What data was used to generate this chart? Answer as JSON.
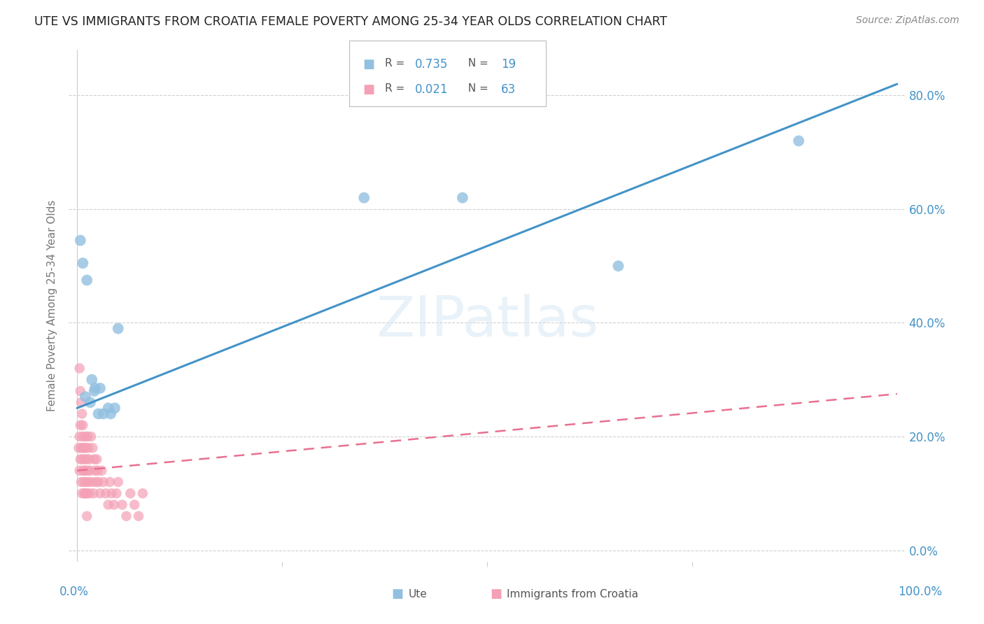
{
  "title": "UTE VS IMMIGRANTS FROM CROATIA FEMALE POVERTY AMONG 25-34 YEAR OLDS CORRELATION CHART",
  "source": "Source: ZipAtlas.com",
  "ylabel": "Female Poverty Among 25-34 Year Olds",
  "xlim": [
    0,
    1
  ],
  "ylim": [
    0,
    0.88
  ],
  "yticks": [
    0.0,
    0.2,
    0.4,
    0.6,
    0.8
  ],
  "ytick_labels": [
    "0.0%",
    "20.0%",
    "40.0%",
    "60.0%",
    "80.0%"
  ],
  "legend_ute_R": "0.735",
  "legend_ute_N": "19",
  "legend_croatia_R": "0.021",
  "legend_croatia_N": "63",
  "blue_color": "#92c0e0",
  "blue_line_color": "#4393c8",
  "pink_color": "#f4a0b5",
  "pink_line_color": "#e87090",
  "ute_line_x0": 0.0,
  "ute_line_y0": 0.25,
  "ute_line_x1": 1.0,
  "ute_line_y1": 0.82,
  "croatia_line_x0": 0.0,
  "croatia_line_y0": 0.14,
  "croatia_line_x1": 1.0,
  "croatia_line_y1": 0.275,
  "ute_x": [
    0.004,
    0.007,
    0.012,
    0.018,
    0.022,
    0.028,
    0.038,
    0.046,
    0.35,
    0.47,
    0.66,
    0.88,
    0.01,
    0.016,
    0.021,
    0.026,
    0.032,
    0.041,
    0.05
  ],
  "ute_y": [
    0.545,
    0.505,
    0.475,
    0.3,
    0.285,
    0.285,
    0.25,
    0.25,
    0.62,
    0.62,
    0.5,
    0.72,
    0.27,
    0.26,
    0.28,
    0.24,
    0.24,
    0.24,
    0.39
  ],
  "croatia_x": [
    0.002,
    0.003,
    0.003,
    0.004,
    0.004,
    0.005,
    0.005,
    0.006,
    0.006,
    0.007,
    0.007,
    0.008,
    0.008,
    0.009,
    0.009,
    0.01,
    0.01,
    0.011,
    0.011,
    0.012,
    0.012,
    0.013,
    0.013,
    0.014,
    0.014,
    0.015,
    0.015,
    0.016,
    0.017,
    0.018,
    0.019,
    0.02,
    0.021,
    0.022,
    0.023,
    0.024,
    0.025,
    0.026,
    0.028,
    0.03,
    0.032,
    0.035,
    0.038,
    0.04,
    0.042,
    0.045,
    0.048,
    0.05,
    0.055,
    0.06,
    0.065,
    0.07,
    0.075,
    0.08,
    0.003,
    0.004,
    0.005,
    0.006,
    0.007,
    0.008,
    0.009,
    0.01,
    0.012
  ],
  "croatia_y": [
    0.18,
    0.14,
    0.2,
    0.16,
    0.22,
    0.12,
    0.18,
    0.1,
    0.16,
    0.14,
    0.2,
    0.12,
    0.18,
    0.1,
    0.16,
    0.14,
    0.2,
    0.12,
    0.18,
    0.1,
    0.16,
    0.14,
    0.2,
    0.12,
    0.18,
    0.1,
    0.16,
    0.14,
    0.2,
    0.12,
    0.18,
    0.1,
    0.16,
    0.14,
    0.12,
    0.16,
    0.14,
    0.12,
    0.1,
    0.14,
    0.12,
    0.1,
    0.08,
    0.12,
    0.1,
    0.08,
    0.1,
    0.12,
    0.08,
    0.06,
    0.1,
    0.08,
    0.06,
    0.1,
    0.32,
    0.28,
    0.26,
    0.24,
    0.22,
    0.18,
    0.14,
    0.1,
    0.06
  ]
}
